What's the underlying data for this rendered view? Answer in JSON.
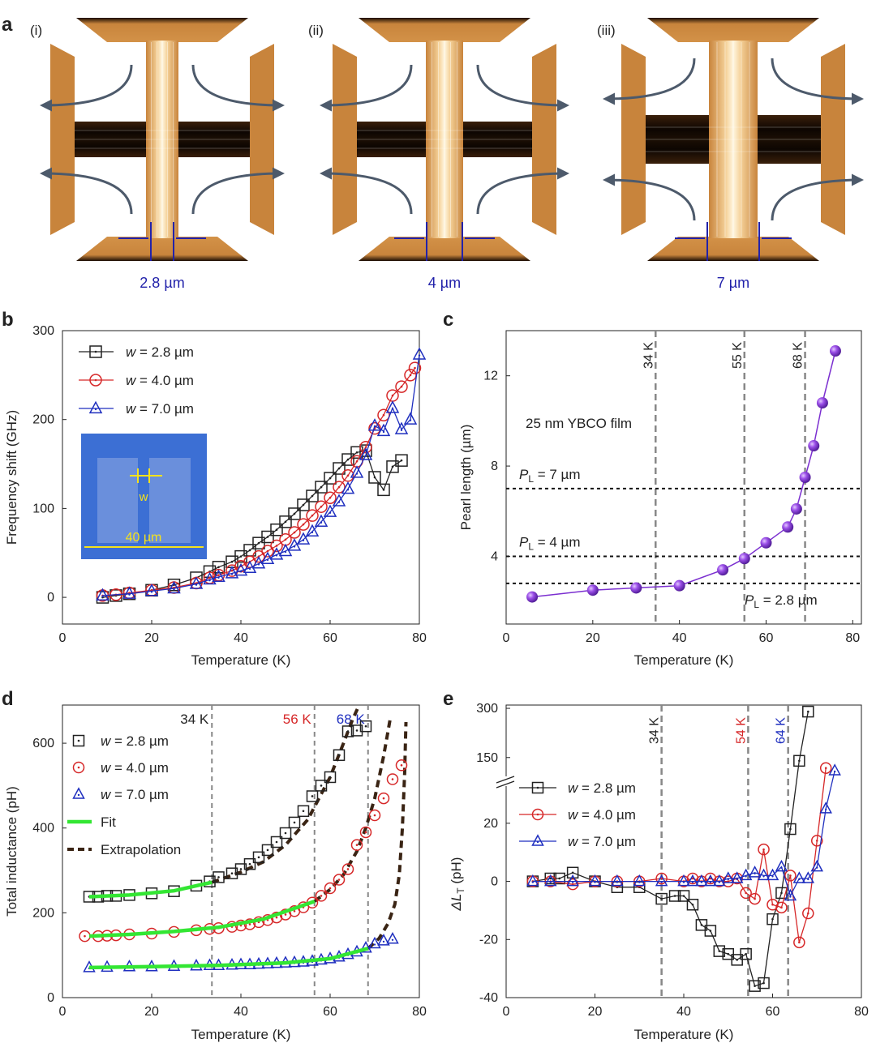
{
  "colors": {
    "black": "#222222",
    "red": "#d62728",
    "blue": "#1f2fbf",
    "purple": "#7b2fd0",
    "fit_green": "#33e633",
    "extrap_brown": "#3a2414",
    "dashed_grey": "#888888",
    "dotted_black": "#111111",
    "bridge_orange": "#c8843c",
    "bridge_dark": "#150a03",
    "dim_blue": "#2222aa",
    "arrow_slate": "#4d5a6b",
    "inset_blue": "#3c6fd4",
    "inset_yellow": "#f5e21a"
  },
  "panel_a": {
    "label": "a",
    "devices": [
      {
        "tag": "(i)",
        "width_label": "2.8 µm",
        "width": 2.8
      },
      {
        "tag": "(ii)",
        "width_label": "4 µm",
        "width": 4.0
      },
      {
        "tag": "(iii)",
        "width_label": "7 µm",
        "width": 7.0
      }
    ]
  },
  "chart_data": [
    {
      "panel": "b",
      "type": "line",
      "xlabel": "Temperature (K)",
      "ylabel": "Frequency shift (GHz)",
      "xlim": [
        0,
        80
      ],
      "ylim": [
        -30,
        300
      ],
      "xticks": [
        0,
        20,
        40,
        60,
        80
      ],
      "yticks": [
        0,
        100,
        200,
        300
      ],
      "legend": {
        "placement": "top-left"
      },
      "inset": {
        "width_label": "w",
        "size_label": "40 µm"
      },
      "series": [
        {
          "name": "w = 2.8 µm",
          "marker": "square",
          "color": "black",
          "x": [
            9,
            12,
            15,
            20,
            25,
            30,
            33,
            35,
            38,
            40,
            42,
            44,
            46,
            48,
            50,
            52,
            54,
            56,
            58,
            60,
            62,
            64,
            66,
            68,
            70,
            72,
            74,
            76
          ],
          "y": [
            0,
            2,
            4,
            8,
            14,
            22,
            29,
            34,
            40,
            46,
            53,
            61,
            68,
            76,
            85,
            94,
            104,
            114,
            124,
            134,
            145,
            155,
            163,
            165,
            135,
            121,
            147,
            154
          ]
        },
        {
          "name": "w = 4.0 µm",
          "marker": "circle",
          "color": "red",
          "x": [
            9,
            12,
            15,
            20,
            25,
            30,
            33,
            35,
            38,
            40,
            42,
            44,
            46,
            48,
            50,
            52,
            54,
            56,
            58,
            60,
            62,
            64,
            66,
            68,
            70,
            72,
            74,
            76,
            78,
            79
          ],
          "y": [
            2,
            3,
            5,
            8,
            11,
            16,
            22,
            25,
            30,
            35,
            40,
            46,
            52,
            58,
            65,
            73,
            82,
            92,
            102,
            112,
            124,
            137,
            153,
            169,
            190,
            205,
            227,
            237,
            250,
            258
          ]
        },
        {
          "name": "w = 7.0 µm",
          "marker": "triangle",
          "color": "blue",
          "x": [
            9,
            15,
            20,
            25,
            30,
            33,
            35,
            38,
            40,
            42,
            44,
            46,
            48,
            50,
            52,
            54,
            56,
            58,
            60,
            62,
            64,
            66,
            68,
            70,
            72,
            74,
            76,
            78,
            80
          ],
          "y": [
            2,
            4,
            7,
            10,
            15,
            20,
            23,
            27,
            30,
            33,
            38,
            43,
            48,
            52,
            58,
            65,
            74,
            85,
            96,
            108,
            122,
            140,
            160,
            193,
            187,
            213,
            189,
            200,
            273
          ]
        }
      ]
    },
    {
      "panel": "c",
      "type": "line",
      "xlabel": "Temperature (K)",
      "ylabel": "Pearl length (µm)",
      "xlim": [
        0,
        82
      ],
      "ylim": [
        1,
        14
      ],
      "xticks": [
        0,
        20,
        40,
        60,
        80
      ],
      "yticks": [
        4,
        8,
        12
      ],
      "annotation": "25 nm YBCO film",
      "vlines": [
        {
          "x": 34.5,
          "label": "34 K"
        },
        {
          "x": 55,
          "label": "55 K"
        },
        {
          "x": 69,
          "label": "68 K"
        }
      ],
      "hlines": [
        {
          "y": 7.0,
          "label_sym": "P",
          "label_sub": "L",
          "label_val": " = 7 µm"
        },
        {
          "y": 4.0,
          "label_sym": "P",
          "label_sub": "L",
          "label_val": " = 4 µm"
        },
        {
          "y": 2.8,
          "label_sym": "P",
          "label_sub": "L",
          "label_val": " = 2.8 µm"
        }
      ],
      "series": [
        {
          "name": "",
          "marker": "sphere",
          "color": "purple",
          "x": [
            6,
            20,
            30,
            40,
            50,
            55,
            60,
            65,
            67,
            69,
            71,
            73,
            76
          ],
          "y": [
            2.2,
            2.5,
            2.6,
            2.7,
            3.4,
            3.9,
            4.6,
            5.3,
            6.1,
            7.5,
            8.9,
            10.8,
            13.1
          ]
        }
      ]
    },
    {
      "panel": "d",
      "type": "line",
      "xlabel": "Temperature (K)",
      "ylabel": "Total inductance (pH)",
      "xlim": [
        0,
        80
      ],
      "ylim": [
        0,
        690
      ],
      "xticks": [
        0,
        20,
        40,
        60,
        80
      ],
      "yticks": [
        0,
        200,
        400,
        600
      ],
      "legend": {
        "placement": "top-left"
      },
      "vlines": [
        {
          "x": 33.5,
          "label": "34 K",
          "color": "black"
        },
        {
          "x": 56.5,
          "label": "56 K",
          "color": "red"
        },
        {
          "x": 68.5,
          "label": "68 K",
          "color": "blue"
        }
      ],
      "legend_extra": [
        "Fit",
        "Extrapolation"
      ],
      "series": [
        {
          "name": "w = 2.8 µm",
          "marker": "square",
          "color": "black",
          "x": [
            6,
            8,
            10,
            12,
            15,
            20,
            25,
            30,
            33,
            35,
            38,
            40,
            42,
            44,
            46,
            48,
            50,
            52,
            54,
            56,
            58,
            60,
            62,
            64,
            66,
            68
          ],
          "y": [
            238,
            238,
            240,
            240,
            242,
            246,
            251,
            264,
            274,
            284,
            293,
            303,
            315,
            331,
            348,
            367,
            388,
            413,
            440,
            475,
            500,
            520,
            572,
            628,
            630,
            640
          ]
        },
        {
          "name": "w = 4.0 µm",
          "marker": "circle",
          "color": "red",
          "x": [
            5,
            8,
            10,
            12,
            15,
            20,
            25,
            30,
            33,
            35,
            38,
            40,
            42,
            44,
            46,
            48,
            50,
            52,
            54,
            56,
            58,
            60,
            62,
            64,
            66,
            68,
            70,
            72,
            74,
            76
          ],
          "y": [
            145,
            145,
            146,
            147,
            149,
            151,
            155,
            159,
            162,
            164,
            167,
            170,
            173,
            178,
            183,
            189,
            196,
            204,
            213,
            224,
            240,
            258,
            278,
            303,
            360,
            390,
            430,
            470,
            515,
            548
          ]
        },
        {
          "name": "w = 7.0 µm",
          "marker": "triangle",
          "color": "blue",
          "x": [
            6,
            10,
            15,
            20,
            25,
            30,
            33,
            35,
            38,
            40,
            42,
            44,
            46,
            48,
            50,
            52,
            54,
            56,
            58,
            60,
            62,
            64,
            66,
            68,
            70,
            72,
            74
          ],
          "y": [
            71,
            72,
            73,
            73,
            74,
            75,
            76,
            76,
            77,
            78,
            78,
            79,
            80,
            81,
            82,
            83,
            84,
            86,
            89,
            92,
            96,
            102,
            108,
            117,
            127,
            134,
            138
          ]
        }
      ],
      "fits": [
        {
          "x": [
            6,
            15,
            25,
            33.5
          ],
          "y": [
            238,
            242,
            252,
            272
          ]
        },
        {
          "x": [
            6,
            15,
            25,
            35,
            45,
            56.5
          ],
          "y": [
            145,
            149,
            156,
            166,
            185,
            227
          ]
        },
        {
          "x": [
            6,
            20,
            35,
            50,
            60,
            68.5
          ],
          "y": [
            71,
            73,
            76,
            82,
            92,
            116
          ]
        }
      ],
      "extrapolations": [
        {
          "x": [
            33.5,
            40,
            45,
            50,
            55,
            60,
            63,
            65,
            66.5
          ],
          "y": [
            272,
            296,
            320,
            360,
            420,
            520,
            600,
            655,
            690
          ]
        },
        {
          "x": [
            56.5,
            60,
            63,
            66,
            68,
            70,
            72,
            73.5
          ],
          "y": [
            227,
            255,
            290,
            345,
            400,
            470,
            570,
            660
          ]
        },
        {
          "x": [
            68.5,
            71,
            73,
            74.5,
            75.5,
            76.2,
            76.7,
            77
          ],
          "y": [
            116,
            140,
            175,
            220,
            290,
            400,
            530,
            650
          ]
        }
      ]
    },
    {
      "panel": "e",
      "type": "line",
      "xlabel": "Temperature (K)",
      "ylabel_sym": "ΔL",
      "ylabel_sub": "T",
      "ylabel_unit": " (pH)",
      "xlim": [
        0,
        80
      ],
      "ylim_lower": [
        -40,
        30
      ],
      "ylim_upper": [
        100,
        310
      ],
      "xticks": [
        0,
        20,
        40,
        60,
        80
      ],
      "yticks_lower": [
        -40,
        -20,
        0,
        20
      ],
      "yticks_upper": [
        150,
        300
      ],
      "broken_axis": true,
      "legend": {
        "placement": "middle-left"
      },
      "vlines": [
        {
          "x": 35,
          "label": "34 K",
          "color": "black"
        },
        {
          "x": 54.5,
          "label": "54 K",
          "color": "red"
        },
        {
          "x": 63.5,
          "label": "64 K",
          "color": "blue"
        }
      ],
      "series": [
        {
          "name": "w = 2.8 µm",
          "marker": "square",
          "color": "black",
          "x": [
            6,
            10,
            12,
            15,
            20,
            25,
            30,
            35,
            38,
            40,
            42,
            44,
            46,
            48,
            50,
            52,
            54,
            56,
            58,
            60,
            62,
            64,
            66,
            68
          ],
          "y": [
            0,
            1,
            1,
            3,
            0,
            -2,
            -2,
            -6,
            -5,
            -5,
            -8,
            -15,
            -17,
            -24,
            -25,
            -27,
            -25,
            -36,
            -35,
            -13,
            -4,
            18,
            140,
            290
          ]
        },
        {
          "name": "w = 4.0 µm",
          "marker": "circle",
          "color": "red",
          "x": [
            6,
            10,
            15,
            20,
            25,
            30,
            35,
            40,
            42,
            44,
            46,
            48,
            50,
            52,
            54,
            56,
            58,
            60,
            62,
            64,
            66,
            68,
            70,
            72
          ],
          "y": [
            0,
            0,
            -1,
            0,
            0,
            0,
            1,
            0,
            1,
            0,
            1,
            0,
            0,
            1,
            -4,
            -6,
            11,
            -8,
            -9,
            2,
            -21,
            -11,
            14,
            118
          ]
        },
        {
          "name": "w = 7.0 µm",
          "marker": "triangle",
          "color": "blue",
          "x": [
            6,
            10,
            15,
            20,
            25,
            30,
            35,
            40,
            42,
            44,
            46,
            48,
            50,
            52,
            54,
            56,
            58,
            60,
            62,
            64,
            66,
            68,
            70,
            72,
            74
          ],
          "y": [
            0,
            0,
            0,
            0,
            0,
            0,
            0,
            0,
            0,
            0,
            0,
            0,
            1,
            1,
            2,
            3,
            2,
            2,
            5,
            -5,
            1,
            1,
            5,
            25,
            110
          ]
        }
      ]
    }
  ]
}
